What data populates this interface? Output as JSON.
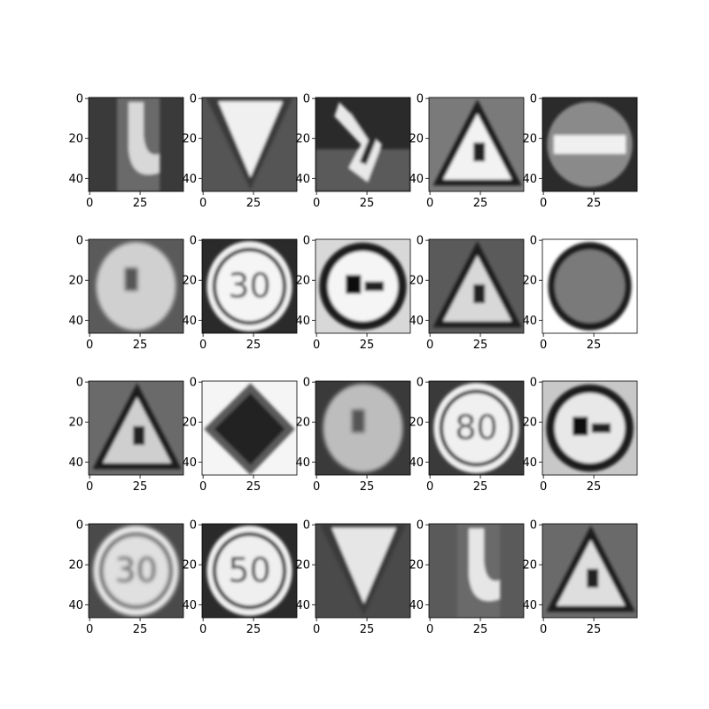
{
  "figure": {
    "background": "#ffffff",
    "grid": {
      "rows": 4,
      "cols": 5
    },
    "image_size": [
      47,
      47
    ],
    "x_ticks": [
      "0",
      "25"
    ],
    "y_ticks": [
      "0",
      "20",
      "40"
    ],
    "colormap": "gray",
    "panels": [
      {
        "shape": "arrow-curve-right",
        "bg": "#3a3a3a",
        "fg": "#d8d8d8",
        "text": ""
      },
      {
        "shape": "triangle-down",
        "bg": "#555555",
        "fg": "#f0f0f0",
        "text": ""
      },
      {
        "shape": "arrow-curve-down",
        "bg": "#2a2a2a",
        "fg": "#e8e8e8",
        "text": ""
      },
      {
        "shape": "triangle-up-worker",
        "bg": "#7a7a7a",
        "fg": "#f2f2f2",
        "text": ""
      },
      {
        "shape": "no-entry",
        "bg": "#2b2b2b",
        "fg": "#8a8a8a",
        "text": ""
      },
      {
        "shape": "round-blur",
        "bg": "#5a5a5a",
        "fg": "#d0d0d0",
        "text": ""
      },
      {
        "shape": "speed-limit",
        "bg": "#2a2a2a",
        "fg": "#f5f5f5",
        "text": "30"
      },
      {
        "shape": "no-overtaking-trucks",
        "bg": "#d8d8d8",
        "fg": "#f5f5f5",
        "text": ""
      },
      {
        "shape": "triangle-up-truck",
        "bg": "#5a5a5a",
        "fg": "#d8d8d8",
        "text": ""
      },
      {
        "shape": "round-dark-pixel",
        "bg": "#ffffff",
        "fg": "#7a7a7a",
        "text": ""
      },
      {
        "shape": "triangle-up-pale",
        "bg": "#6a6a6a",
        "fg": "#cfcfcf",
        "text": ""
      },
      {
        "shape": "diamond",
        "bg": "#f5f5f5",
        "fg": "#202020",
        "text": ""
      },
      {
        "shape": "round-blur-text",
        "bg": "#3a3a3a",
        "fg": "#bdbdbd",
        "text": ""
      },
      {
        "shape": "speed-limit",
        "bg": "#3a3a3a",
        "fg": "#f0f0f0",
        "text": "80"
      },
      {
        "shape": "no-overtaking",
        "bg": "#c8c8c8",
        "fg": "#e8e8e8",
        "text": ""
      },
      {
        "shape": "speed-limit-blur",
        "bg": "#4a4a4a",
        "fg": "#e0e0e0",
        "text": "30"
      },
      {
        "shape": "speed-limit",
        "bg": "#2a2a2a",
        "fg": "#efefef",
        "text": "50"
      },
      {
        "shape": "triangle-down-wide",
        "bg": "#4a4a4a",
        "fg": "#e6e6e6",
        "text": ""
      },
      {
        "shape": "arrow-curve-right-soft",
        "bg": "#5a5a5a",
        "fg": "#e6e6e6",
        "text": ""
      },
      {
        "shape": "triangle-up-worker-dark",
        "bg": "#6a6a6a",
        "fg": "#dedede",
        "text": ""
      }
    ]
  }
}
